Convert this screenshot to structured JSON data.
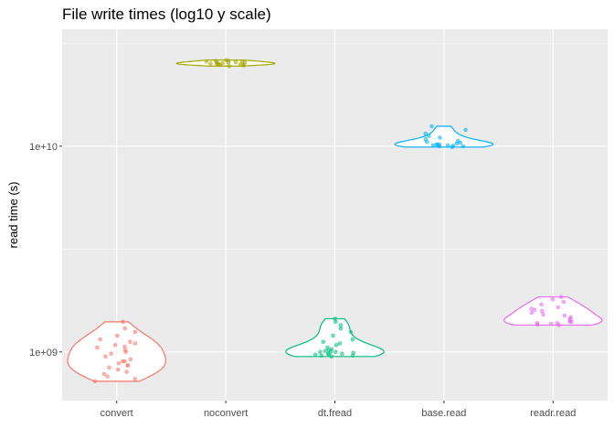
{
  "chart_data": {
    "type": "violin",
    "title": "File write times (log10 y scale)",
    "xlabel": "",
    "ylabel": "read time (s)",
    "y_scale": "log10",
    "ylim": [
      580000000,
      37000000000
    ],
    "yticks": [
      1000000000,
      10000000000
    ],
    "ytick_labels": [
      "1e+09",
      "1e+10"
    ],
    "grid": true,
    "legend": "none",
    "categories": [
      "convert",
      "noconvert",
      "dt.fread",
      "base.read",
      "readr.read"
    ],
    "colors": [
      "#F8766D",
      "#A3A500",
      "#00BF7D",
      "#00B0F6",
      "#E76BF3"
    ],
    "series": [
      {
        "values": [
          720000000,
          740000000,
          760000000,
          780000000,
          800000000,
          820000000,
          840000000,
          860000000,
          860000000,
          880000000,
          900000000,
          900000000,
          920000000,
          950000000,
          980000000,
          1000000000,
          1020000000,
          1050000000,
          1060000000,
          1080000000,
          1100000000,
          1120000000,
          1150000000,
          1200000000,
          1250000000,
          1300000000,
          1400000000
        ]
      },
      {
        "values": [
          24500000000,
          24700000000,
          24800000000,
          24900000000,
          25000000000,
          25000000000,
          25100000000,
          25200000000,
          25200000000,
          25300000000,
          25400000000,
          25500000000,
          25500000000,
          25600000000,
          25700000000,
          25800000000,
          26000000000,
          26000000000,
          26200000000
        ]
      },
      {
        "values": [
          950000000,
          960000000,
          960000000,
          970000000,
          970000000,
          980000000,
          980000000,
          990000000,
          1000000000,
          1000000000,
          1000000000,
          1010000000,
          1020000000,
          1030000000,
          1050000000,
          1080000000,
          1100000000,
          1120000000,
          1150000000,
          1200000000,
          1250000000,
          1300000000,
          1350000000,
          1400000000,
          1450000000
        ]
      },
      {
        "values": [
          9900000000,
          10000000000,
          10000000000,
          10050000000,
          10100000000,
          10100000000,
          10150000000,
          10200000000,
          10200000000,
          10300000000,
          10400000000,
          10500000000,
          10600000000,
          10800000000,
          11000000000,
          11200000000,
          11500000000,
          12000000000,
          12500000000
        ]
      },
      {
        "values": [
          1350000000,
          1360000000,
          1370000000,
          1380000000,
          1380000000,
          1400000000,
          1400000000,
          1420000000,
          1450000000,
          1470000000,
          1500000000,
          1520000000,
          1550000000,
          1580000000,
          1600000000,
          1620000000,
          1650000000,
          1700000000,
          1750000000,
          1800000000,
          1850000000
        ]
      }
    ]
  }
}
